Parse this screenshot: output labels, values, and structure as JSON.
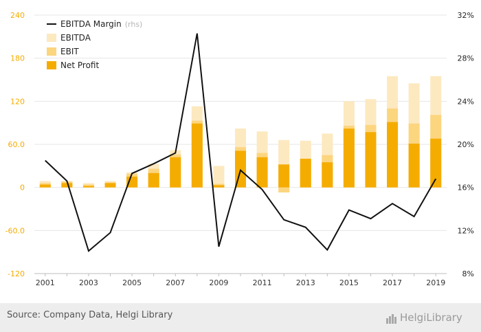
{
  "chart_data": {
    "type": "bar",
    "categories": [
      "2001",
      "2002",
      "2003",
      "2004",
      "2005",
      "2006",
      "2007",
      "2008",
      "2009",
      "2010",
      "2011",
      "2012",
      "2013",
      "2014",
      "2015",
      "2016",
      "2017",
      "2018",
      "2019"
    ],
    "xtick_labels": [
      "2001",
      "2003",
      "2005",
      "2007",
      "2009",
      "2011",
      "2013",
      "2015",
      "2017",
      "2019"
    ],
    "ylim_left": [
      -120,
      240
    ],
    "yticks_left": [
      "240",
      "180",
      "120",
      "60.0",
      "0",
      "-60.0",
      "-120"
    ],
    "ylim_right": [
      8,
      32
    ],
    "yticks_right": [
      "32%",
      "28%",
      "24%",
      "20%",
      "16%",
      "12%",
      "8%"
    ],
    "series": [
      {
        "name": "EBITDA",
        "kind": "bar",
        "color": "#fde9c0",
        "values": [
          9,
          9,
          6,
          9,
          21,
          33,
          52,
          113,
          30,
          82,
          78,
          66,
          65,
          75,
          120,
          123,
          155,
          145,
          155
        ]
      },
      {
        "name": "EBIT",
        "kind": "bar",
        "color": "#fcd57f",
        "values": [
          6,
          8,
          4,
          7,
          19,
          26,
          46,
          93,
          5,
          56,
          48,
          -7,
          37,
          45,
          86,
          87,
          110,
          89,
          101
        ]
      },
      {
        "name": "Net Profit",
        "kind": "bar",
        "color": "#f5ac00",
        "values": [
          4,
          6,
          2,
          6,
          15,
          20,
          42,
          89,
          3,
          51,
          42,
          32,
          40,
          35,
          82,
          77,
          91,
          61,
          68
        ]
      },
      {
        "name": "EBITDA Margin",
        "kind": "line",
        "axis": "right",
        "color": "#111111",
        "values": [
          18.5,
          16.6,
          10.1,
          11.8,
          17.3,
          18.2,
          19.2,
          30.3,
          10.5,
          17.6,
          15.8,
          13.0,
          12.3,
          10.2,
          13.9,
          13.1,
          14.5,
          13.3,
          16.8
        ]
      }
    ],
    "legend": {
      "placement": "top-left",
      "items": [
        {
          "label": "EBITDA Margin",
          "suffix": "(rhs)",
          "kind": "line",
          "color": "#111111"
        },
        {
          "label": "EBITDA",
          "kind": "bar",
          "color": "#fde9c0"
        },
        {
          "label": "EBIT",
          "kind": "bar",
          "color": "#fcd57f"
        },
        {
          "label": "Net Profit",
          "kind": "bar",
          "color": "#f5ac00"
        }
      ]
    },
    "grid": true
  },
  "colors": {
    "left_axis_label": "#f5ac00",
    "right_axis_label": "#222222",
    "gridline": "#e6e6e6",
    "footer_bg": "#ededed"
  },
  "footer": {
    "source": "Source: Company Data, Helgi Library",
    "logo_text": "HelgiLibrary"
  }
}
